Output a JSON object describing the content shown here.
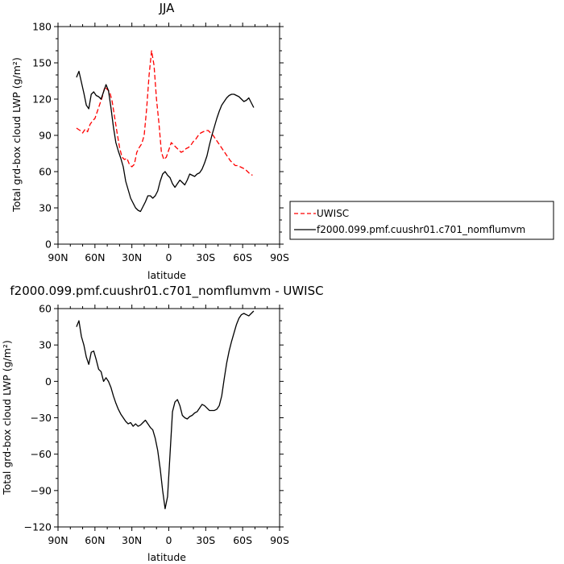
{
  "chart_data": [
    {
      "type": "line",
      "title": "JJA",
      "xlabel": "latitude",
      "ylabel": "Total grd-box cloud LWP (g/m²)",
      "xlim": [
        90,
        -90
      ],
      "ylim": [
        0,
        180
      ],
      "x_ticks": [
        90,
        60,
        30,
        0,
        -30,
        -60,
        -90
      ],
      "x_tick_labels": [
        "90N",
        "60N",
        "30N",
        "0",
        "30S",
        "60S",
        "90S"
      ],
      "y_ticks": [
        0,
        30,
        60,
        90,
        120,
        150,
        180
      ],
      "y_tick_labels": [
        "0",
        "30",
        "60",
        "90",
        "120",
        "150",
        "180"
      ],
      "legend_position": "right",
      "series": [
        {
          "name": "UWISC",
          "color": "#ff0000",
          "style": "dashed",
          "x": [
            75,
            72,
            70,
            68,
            66,
            64,
            62,
            60,
            58,
            56,
            54,
            52,
            50,
            48,
            46,
            44,
            42,
            40,
            38,
            36,
            34,
            32,
            30,
            28,
            26,
            24,
            22,
            20,
            18,
            16,
            14,
            12,
            10,
            8,
            6,
            4,
            2,
            0,
            -2,
            -4,
            -6,
            -8,
            -10,
            -12,
            -14,
            -16,
            -18,
            -20,
            -22,
            -24,
            -26,
            -28,
            -30,
            -32,
            -34,
            -36,
            -38,
            -40,
            -42,
            -44,
            -46,
            -48,
            -50,
            -52,
            -54,
            -56,
            -58,
            -60,
            -62,
            -64,
            -66,
            -68
          ],
          "values": [
            96,
            94,
            92,
            95,
            93,
            99,
            102,
            104,
            110,
            116,
            122,
            130,
            128,
            126,
            118,
            105,
            92,
            80,
            72,
            70,
            71,
            66,
            64,
            66,
            76,
            80,
            83,
            90,
            112,
            140,
            160,
            148,
            120,
            100,
            76,
            70,
            72,
            78,
            84,
            82,
            80,
            78,
            76,
            77,
            79,
            80,
            82,
            85,
            87,
            90,
            92,
            93,
            94,
            94,
            92,
            90,
            87,
            84,
            81,
            78,
            75,
            72,
            69,
            67,
            65,
            65,
            64,
            63,
            62,
            60,
            58,
            57
          ]
        },
        {
          "name": "f2000.099.pmf.cuushr01.c701_nomflumvm",
          "color": "#000000",
          "style": "solid",
          "x": [
            75,
            73,
            71,
            69,
            67,
            65,
            63,
            61,
            59,
            57,
            55,
            53,
            51,
            49,
            47,
            45,
            43,
            41,
            39,
            37,
            35,
            33,
            31,
            29,
            27,
            25,
            23,
            21,
            19,
            17,
            15,
            13,
            11,
            9,
            7,
            5,
            3,
            1,
            -1,
            -3,
            -5,
            -7,
            -9,
            -11,
            -13,
            -15,
            -17,
            -19,
            -21,
            -23,
            -25,
            -27,
            -29,
            -31,
            -33,
            -35,
            -37,
            -39,
            -41,
            -43,
            -45,
            -47,
            -49,
            -51,
            -53,
            -55,
            -57,
            -59,
            -61,
            -63,
            -65,
            -67,
            -69
          ],
          "values": [
            138,
            143,
            134,
            125,
            115,
            112,
            124,
            126,
            123,
            122,
            120,
            126,
            132,
            127,
            113,
            97,
            84,
            77,
            71,
            64,
            52,
            45,
            38,
            34,
            30,
            28,
            27,
            31,
            35,
            40,
            40,
            38,
            40,
            44,
            52,
            58,
            60,
            57,
            55,
            50,
            47,
            50,
            53,
            51,
            49,
            53,
            58,
            57,
            56,
            58,
            59,
            62,
            67,
            73,
            82,
            90,
            97,
            104,
            110,
            115,
            118,
            121,
            123,
            124,
            124,
            123,
            122,
            120,
            118,
            119,
            121,
            117,
            113
          ]
        }
      ]
    },
    {
      "type": "line",
      "title": "f2000.099.pmf.cuushr01.c701_nomflumvm - UWISC",
      "xlabel": "latitude",
      "ylabel": "Total grd-box cloud LWP (g/m²)",
      "xlim": [
        90,
        -90
      ],
      "ylim": [
        -120,
        60
      ],
      "x_ticks": [
        90,
        60,
        30,
        0,
        -30,
        -60,
        -90
      ],
      "x_tick_labels": [
        "90N",
        "60N",
        "30N",
        "0",
        "30S",
        "60S",
        "90S"
      ],
      "y_ticks": [
        -120,
        -90,
        -60,
        -30,
        0,
        30,
        60
      ],
      "y_tick_labels": [
        "−120",
        "−90",
        "−60",
        "−30",
        "0",
        "30",
        "60"
      ],
      "series": [
        {
          "color": "#000000",
          "style": "solid",
          "x": [
            75,
            73,
            71,
            69,
            67,
            65,
            63,
            61,
            59,
            57,
            55,
            53,
            51,
            49,
            47,
            45,
            43,
            41,
            39,
            37,
            35,
            33,
            31,
            29,
            27,
            25,
            23,
            21,
            19,
            17,
            15,
            13,
            11,
            9,
            7,
            5,
            3,
            1,
            -1,
            -3,
            -5,
            -7,
            -9,
            -11,
            -13,
            -15,
            -17,
            -19,
            -21,
            -23,
            -25,
            -27,
            -29,
            -31,
            -33,
            -35,
            -37,
            -39,
            -41,
            -43,
            -45,
            -47,
            -49,
            -51,
            -53,
            -55,
            -57,
            -59,
            -61,
            -63,
            -65,
            -67,
            -69
          ],
          "values": [
            45,
            50,
            37,
            30,
            20,
            14,
            24,
            25,
            18,
            10,
            8,
            0,
            3,
            0,
            -5,
            -12,
            -18,
            -23,
            -27,
            -30,
            -33,
            -35,
            -34,
            -37,
            -35,
            -37,
            -36,
            -34,
            -32,
            -35,
            -38,
            -40,
            -47,
            -57,
            -72,
            -90,
            -105,
            -95,
            -60,
            -25,
            -17,
            -15,
            -20,
            -28,
            -30,
            -31,
            -29,
            -28,
            -26,
            -25,
            -22,
            -19,
            -20,
            -22,
            -24,
            -24,
            -24,
            -23,
            -20,
            -12,
            2,
            15,
            25,
            33,
            40,
            47,
            52,
            55,
            56,
            55,
            54,
            56,
            58
          ]
        }
      ]
    }
  ]
}
